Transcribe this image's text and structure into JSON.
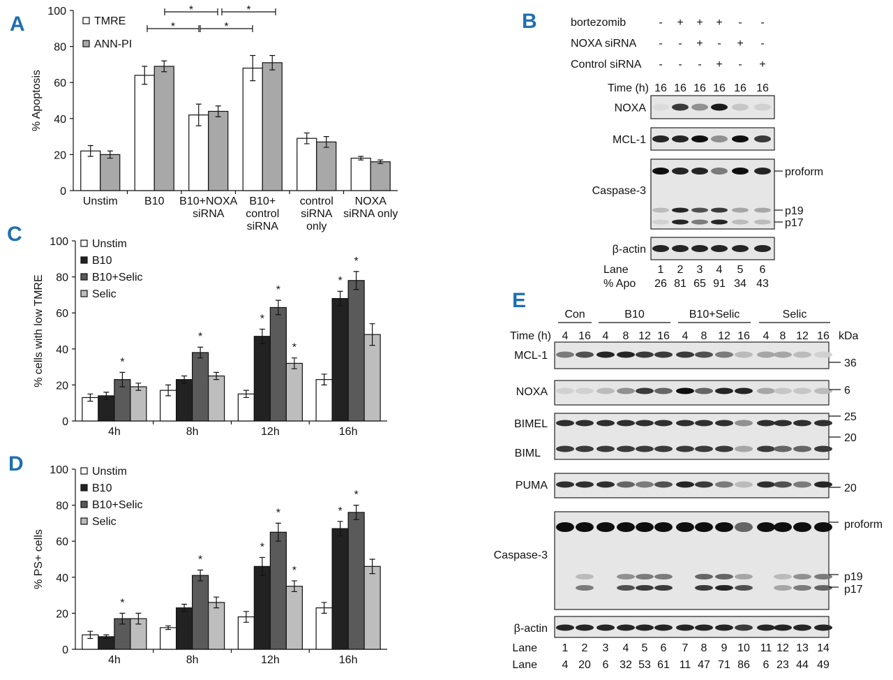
{
  "panels": {
    "a": "A",
    "b": "B",
    "c": "C",
    "d": "D",
    "e": "E"
  },
  "chart_data": [
    {
      "id": "A",
      "type": "bar",
      "title": "",
      "xlabel": "",
      "ylabel": "% Apoptosis",
      "ylim": [
        0,
        100
      ],
      "yticks": [
        "0",
        "20",
        "40",
        "60",
        "80",
        "100"
      ],
      "categories": [
        [
          "Unstim"
        ],
        [
          "B10"
        ],
        [
          "B10+NOXA",
          "siRNA"
        ],
        [
          "B10+",
          "control",
          "siRNA"
        ],
        [
          "control",
          "siRNA",
          "only"
        ],
        [
          "NOXA",
          "siRNA only"
        ]
      ],
      "series": [
        {
          "name": "TMRE",
          "color": "#ffffff",
          "values": [
            22,
            64,
            42,
            68,
            29,
            18
          ],
          "errors": [
            3,
            5,
            6,
            7,
            3,
            1
          ]
        },
        {
          "name": "ANN-PI",
          "color": "#a8a8a8",
          "values": [
            20,
            69,
            44,
            71,
            27,
            16
          ],
          "errors": [
            2,
            3,
            3,
            4,
            3,
            1
          ]
        }
      ],
      "legend_position": "top-left",
      "significance": [
        {
          "from": "B10",
          "to": "B10+NOXA siRNA",
          "label": "*"
        },
        {
          "from": "B10+NOXA siRNA",
          "to": "B10+control siRNA",
          "label": "*"
        },
        {
          "from": "B10 (ANN-PI)",
          "to": "B10+NOXA siRNA (ANN-PI)",
          "label": "*"
        },
        {
          "from": "B10+NOXA siRNA (ANN-PI)",
          "to": "B10+control siRNA (ANN-PI)",
          "label": "*"
        }
      ]
    },
    {
      "id": "C",
      "type": "bar",
      "title": "",
      "xlabel": "",
      "ylabel": "% cells with low TMRE",
      "ylim": [
        0,
        100
      ],
      "yticks": [
        "0",
        "20",
        "40",
        "60",
        "80",
        "100"
      ],
      "categories": [
        [
          "4h"
        ],
        [
          "8h"
        ],
        [
          "12h"
        ],
        [
          "16h"
        ]
      ],
      "series": [
        {
          "name": "Unstim",
          "color": "#ffffff",
          "values": [
            13,
            17,
            15,
            23
          ],
          "errors": [
            2,
            3,
            2,
            3
          ]
        },
        {
          "name": "B10",
          "color": "#222222",
          "values": [
            14,
            23,
            47,
            68
          ],
          "errors": [
            2,
            2,
            4,
            4
          ]
        },
        {
          "name": "B10+Selic",
          "color": "#5a5a5a",
          "values": [
            23,
            38,
            63,
            78
          ],
          "errors": [
            4,
            3,
            4,
            5
          ]
        },
        {
          "name": "Selic",
          "color": "#bdbdbd",
          "values": [
            19,
            25,
            32,
            48
          ],
          "errors": [
            2,
            2,
            3,
            6
          ]
        }
      ],
      "stars": [
        [
          0,
          2
        ],
        [
          1,
          2
        ],
        [
          2,
          1
        ],
        [
          2,
          2
        ],
        [
          2,
          3
        ],
        [
          3,
          1
        ],
        [
          3,
          2
        ]
      ],
      "star_label": "*",
      "legend_position": "top-left"
    },
    {
      "id": "D",
      "type": "bar",
      "title": "",
      "xlabel": "",
      "ylabel": "% PS+ cells",
      "ylim": [
        0,
        100
      ],
      "yticks": [
        "0",
        "20",
        "40",
        "60",
        "80",
        "100"
      ],
      "categories": [
        [
          "4h"
        ],
        [
          "8h"
        ],
        [
          "12h"
        ],
        [
          "16h"
        ]
      ],
      "series": [
        {
          "name": "Unstim",
          "color": "#ffffff",
          "values": [
            8,
            12,
            18,
            23
          ],
          "errors": [
            2,
            1,
            3,
            3
          ]
        },
        {
          "name": "B10",
          "color": "#222222",
          "values": [
            7,
            23,
            46,
            67
          ],
          "errors": [
            1,
            2,
            5,
            4
          ]
        },
        {
          "name": "B10+Selic",
          "color": "#5a5a5a",
          "values": [
            17,
            41,
            65,
            76
          ],
          "errors": [
            3,
            3,
            5,
            4
          ]
        },
        {
          "name": "Selic",
          "color": "#bdbdbd",
          "values": [
            17,
            26,
            35,
            46
          ],
          "errors": [
            3,
            3,
            3,
            4
          ]
        }
      ],
      "stars": [
        [
          0,
          2
        ],
        [
          1,
          2
        ],
        [
          2,
          1
        ],
        [
          2,
          2
        ],
        [
          2,
          3
        ],
        [
          3,
          1
        ],
        [
          3,
          2
        ]
      ],
      "star_label": "*",
      "legend_position": "top-left"
    }
  ],
  "blotB": {
    "conditions": [
      {
        "label": "bortezomib",
        "values": [
          "-",
          "+",
          "+",
          "+",
          "-",
          "-"
        ]
      },
      {
        "label": "NOXA siRNA",
        "values": [
          "-",
          "-",
          "+",
          "-",
          "+",
          "-"
        ]
      },
      {
        "label": "Control siRNA",
        "values": [
          "-",
          "-",
          "-",
          "+",
          "-",
          "+"
        ]
      }
    ],
    "time_label": "Time (h)",
    "times": [
      "16",
      "16",
      "16",
      "16",
      "16",
      "16"
    ],
    "rows": [
      {
        "label": "NOXA",
        "bands": [
          [
            0.05,
            0.8,
            0.4,
            0.95,
            0.15,
            0.1
          ]
        ]
      },
      {
        "label": "MCL-1",
        "bands": [
          [
            0.9,
            0.9,
            1,
            0.4,
            1,
            0.8
          ]
        ]
      },
      {
        "label": "Caspase-3",
        "bands": [
          [
            1,
            0.9,
            0.9,
            0.5,
            1,
            0.9
          ],
          [
            0.2,
            0.9,
            0.7,
            0.8,
            0.3,
            0.3
          ],
          [
            0.1,
            0.9,
            0.5,
            0.9,
            0.2,
            0.2
          ]
        ],
        "markers": [
          "proform",
          "p19",
          "p17"
        ]
      },
      {
        "label": "β-actin",
        "bands": [
          [
            0.9,
            0.9,
            0.9,
            0.9,
            0.9,
            0.9
          ]
        ]
      }
    ],
    "lane_label": "Lane",
    "lanes": [
      "1",
      "2",
      "3",
      "4",
      "5",
      "6"
    ],
    "apo_label": "% Apo",
    "apo": [
      "26",
      "81",
      "65",
      "91",
      "34",
      "43"
    ]
  },
  "blotE": {
    "groups": [
      {
        "label": "Con",
        "span": 2
      },
      {
        "label": "B10",
        "span": 4
      },
      {
        "label": "B10+Selic",
        "span": 4
      },
      {
        "label": "Selic",
        "span": 4
      }
    ],
    "time_label": "Time (h)",
    "times": [
      "4",
      "16",
      "4",
      "8",
      "12",
      "16",
      "4",
      "8",
      "12",
      "16",
      "4",
      "8",
      "12",
      "16"
    ],
    "kda_label": "kDa",
    "rows": [
      {
        "label": "MCL-1",
        "bands": [
          [
            0.5,
            0.7,
            0.9,
            0.9,
            0.8,
            0.8,
            0.8,
            0.7,
            0.5,
            0.2,
            0.3,
            0.3,
            0.2,
            0.1
          ]
        ],
        "kda": [
          "36"
        ]
      },
      {
        "label": "NOXA",
        "bands": [
          [
            0.1,
            0.1,
            0.2,
            0.4,
            0.8,
            0.6,
            1,
            0.6,
            0.9,
            0.9,
            0.3,
            0.15,
            0.15,
            0.2
          ]
        ],
        "kda": [
          "6"
        ]
      },
      {
        "label": "BIMEL",
        "label2": "BIML",
        "bands": [
          [
            0.85,
            0.85,
            0.85,
            0.85,
            0.85,
            0.85,
            0.85,
            0.85,
            0.85,
            0.4,
            0.85,
            0.85,
            0.85,
            0.85
          ],
          [
            0.8,
            0.8,
            0.8,
            0.8,
            0.8,
            0.8,
            0.8,
            0.8,
            0.8,
            0.3,
            0.8,
            0.6,
            0.6,
            0.8
          ]
        ],
        "kda": [
          "25",
          "20"
        ]
      },
      {
        "label": "PUMA",
        "bands": [
          [
            0.85,
            0.85,
            0.85,
            0.6,
            0.5,
            0.7,
            0.9,
            0.8,
            0.5,
            0.2,
            0.85,
            0.7,
            0.5,
            0.9
          ]
        ],
        "kda": [
          "20"
        ]
      },
      {
        "label": "Caspase-3",
        "bands": [
          [
            1,
            1,
            1,
            1,
            1,
            1,
            1,
            1,
            1,
            0.6,
            1,
            1,
            1,
            1
          ],
          [
            0,
            0.2,
            0,
            0.4,
            0.5,
            0.5,
            0,
            0.6,
            0.6,
            0.3,
            0,
            0.2,
            0.4,
            0.5
          ],
          [
            0,
            0.5,
            0,
            0.7,
            0.8,
            0.8,
            0,
            0.8,
            0.9,
            0.7,
            0,
            0.3,
            0.5,
            0.6
          ]
        ],
        "markers": [
          "proform",
          "p19",
          "p17"
        ]
      },
      {
        "label": "β-actin",
        "bands": [
          [
            0.9,
            0.9,
            0.9,
            0.9,
            0.9,
            0.9,
            0.9,
            0.9,
            0.9,
            0.8,
            0.9,
            0.9,
            0.9,
            0.9
          ]
        ]
      }
    ],
    "lane_label": "Lane",
    "lanes": [
      "1",
      "2",
      "3",
      "4",
      "5",
      "6",
      "7",
      "8",
      "9",
      "10",
      "11",
      "12",
      "13",
      "14"
    ],
    "lane_label2": "Lane",
    "values2": [
      "4",
      "20",
      "6",
      "32",
      "53",
      "61",
      "11",
      "47",
      "71",
      "86",
      "6",
      "23",
      "44",
      "49"
    ]
  }
}
